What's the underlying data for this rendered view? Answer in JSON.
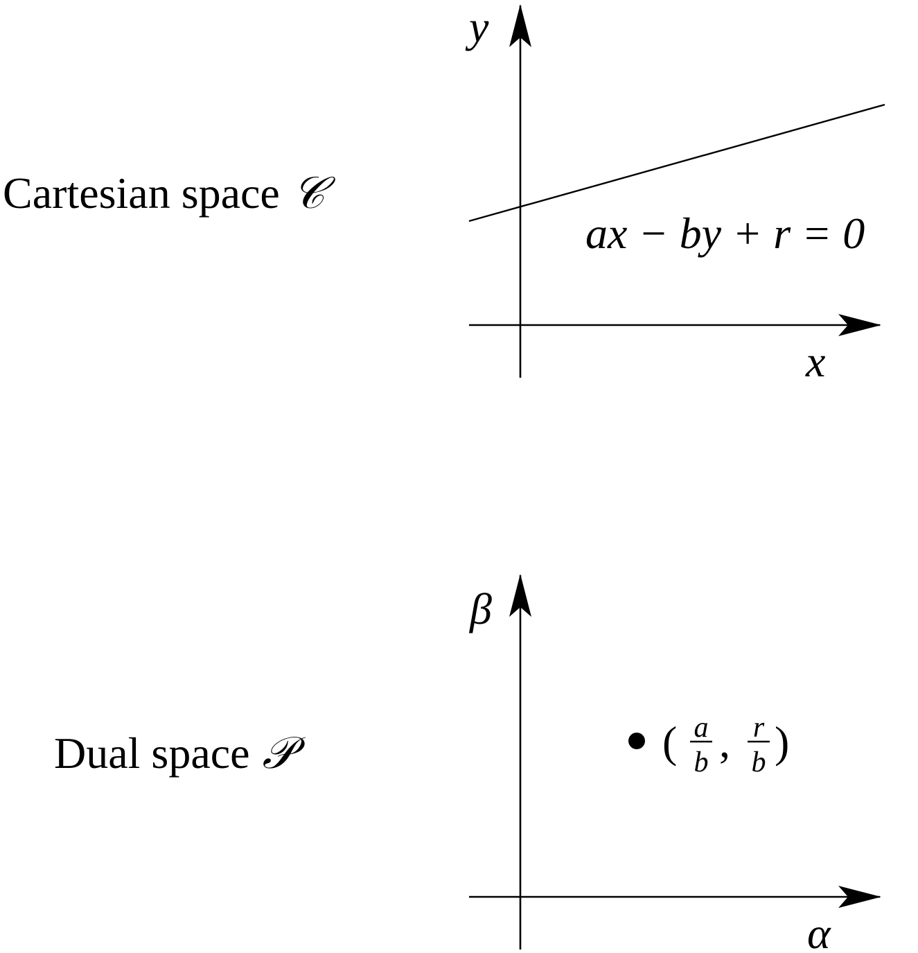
{
  "top_panel": {
    "space_label": "Cartesian space",
    "space_symbol": "𝒞",
    "y_axis_label": "y",
    "x_axis_label": "x",
    "equation": "ax − by + r = 0"
  },
  "bottom_panel": {
    "space_label": "Dual space",
    "space_symbol": "𝒫",
    "y_axis_label": "β",
    "x_axis_label": "α",
    "point_label": {
      "open": "(",
      "frac1_num": "a",
      "frac1_den": "b",
      "comma": ",",
      "frac2_num": "r",
      "frac2_den": "b",
      "close": ")"
    }
  }
}
